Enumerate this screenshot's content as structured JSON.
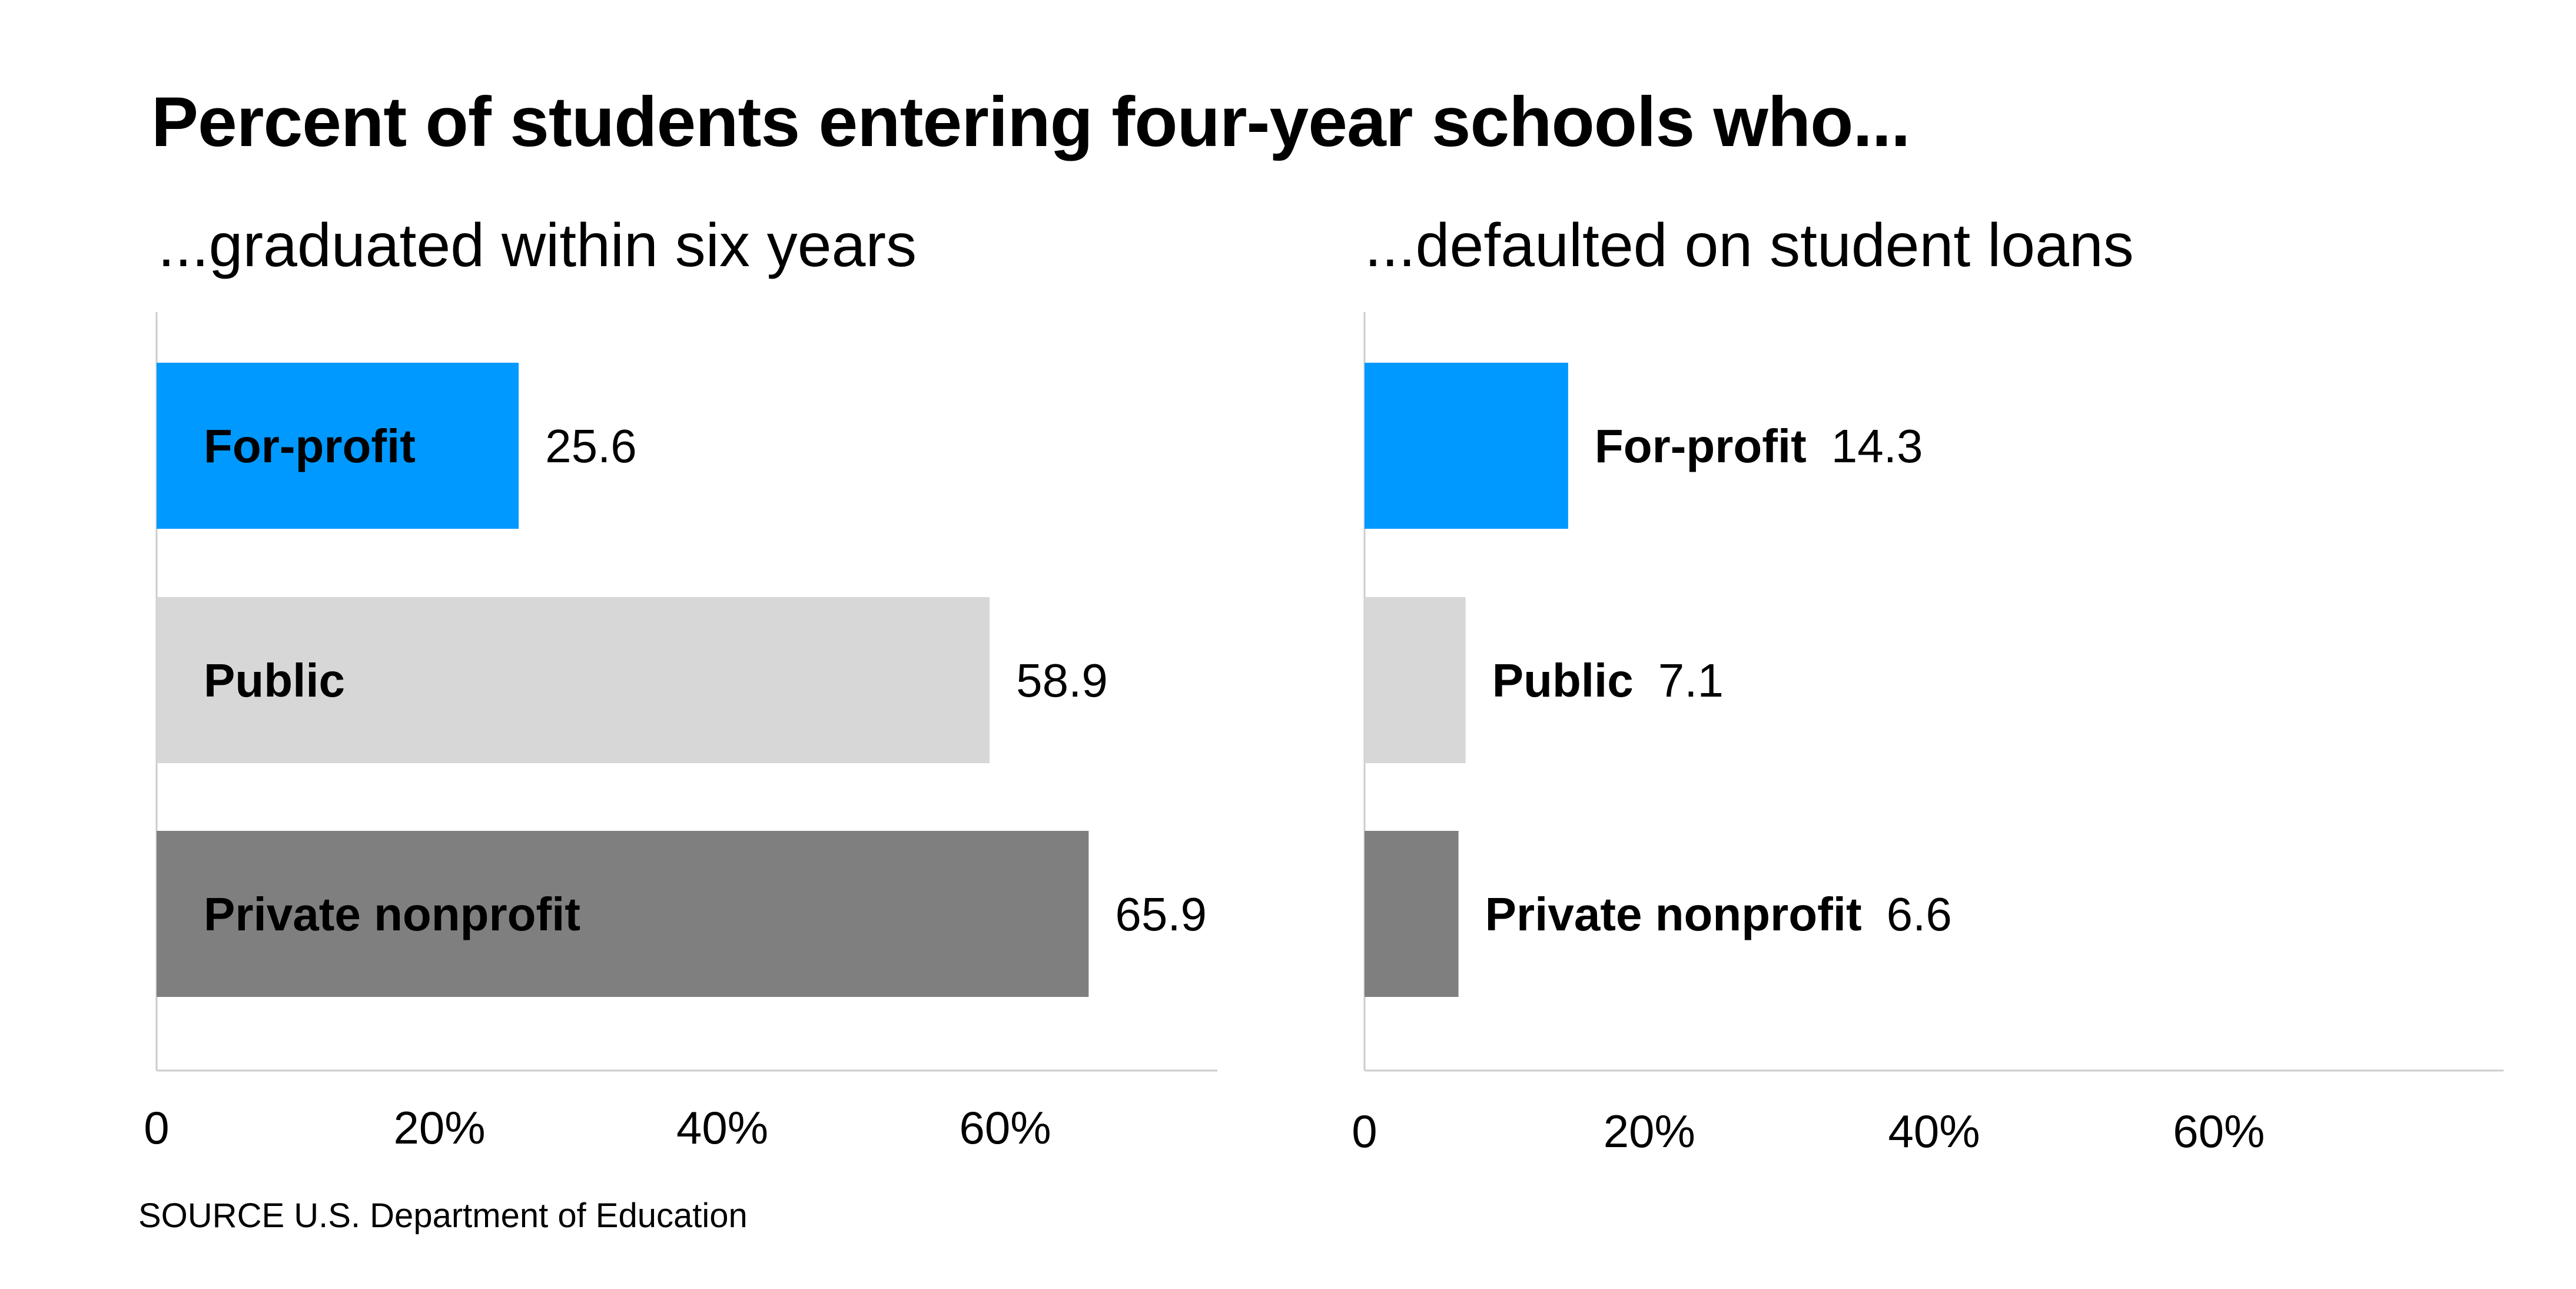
{
  "title": "Percent of students entering four-year schools who...",
  "source": "SOURCE U.S. Department of Education",
  "colors": {
    "for_profit": "#0099ff",
    "public": "#d7d7d7",
    "private_nonprofit": "#7f7f7f",
    "axis": "#cccccc"
  },
  "chart_data": [
    {
      "type": "bar",
      "orientation": "horizontal",
      "title": "...graduated within six years",
      "categories": [
        "For-profit",
        "Public",
        "Private nonprofit"
      ],
      "values": [
        25.6,
        58.9,
        65.9
      ],
      "value_labels": [
        "25.6",
        "58.9",
        "65.9"
      ],
      "xlim": [
        0,
        75
      ],
      "xticks": [
        0,
        20,
        40,
        60
      ],
      "xtick_labels": [
        "0",
        "20%",
        "40%",
        "60%"
      ],
      "label_placement": "inside",
      "grid": false
    },
    {
      "type": "bar",
      "orientation": "horizontal",
      "title": "...defaulted on student loans",
      "categories": [
        "For-profit",
        "Public",
        "Private nonprofit"
      ],
      "values": [
        14.3,
        7.1,
        6.6
      ],
      "value_labels": [
        "14.3",
        "7.1",
        "6.6"
      ],
      "xlim": [
        0,
        80
      ],
      "xticks": [
        0,
        20,
        40,
        60
      ],
      "xtick_labels": [
        "0",
        "20%",
        "40%",
        "60%"
      ],
      "label_placement": "outside",
      "grid": false
    }
  ]
}
